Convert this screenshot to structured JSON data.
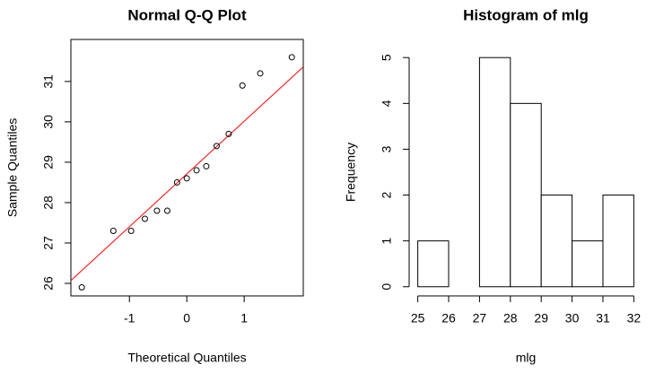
{
  "chart_data": [
    {
      "type": "scatter",
      "title": "Normal Q-Q Plot",
      "xlabel": "Theoretical Quantiles",
      "ylabel": "Sample Quantiles",
      "x": [
        -1.83,
        -1.28,
        -0.97,
        -0.73,
        -0.52,
        -0.34,
        -0.17,
        0,
        0.17,
        0.34,
        0.52,
        0.73,
        0.97,
        1.28,
        1.83
      ],
      "values": [
        25.9,
        27.3,
        27.3,
        27.6,
        27.8,
        27.8,
        28.5,
        28.6,
        28.8,
        28.9,
        29.4,
        29.7,
        30.9,
        31.2,
        31.6
      ],
      "color": "#000000",
      "line": {
        "color": "#ff0000",
        "x": [
          -2.02,
          2.03
        ],
        "y": [
          26.07,
          31.36
        ]
      },
      "xlim": [
        -2.02,
        2.03
      ],
      "ylim": [
        25.69,
        32.04
      ],
      "xticks": [
        -1,
        0,
        1
      ],
      "yticks": [
        26,
        27,
        28,
        29,
        30,
        31
      ],
      "frame": true
    },
    {
      "type": "histogram",
      "title": "Histogram of mlg",
      "xlabel": "mlg",
      "ylabel": "Frequency",
      "bins": [
        25,
        26,
        27,
        28,
        29,
        30,
        31,
        32
      ],
      "values": [
        1,
        0,
        5,
        4,
        2,
        1,
        2
      ],
      "color": "#ffffff",
      "xlim": [
        24.72,
        32.28
      ],
      "ylim": [
        -0.2,
        5.2
      ],
      "xticks": [
        25,
        26,
        27,
        28,
        29,
        30,
        31,
        32
      ],
      "yticks": [
        0,
        1,
        2,
        3,
        4,
        5
      ],
      "frame": false
    }
  ]
}
